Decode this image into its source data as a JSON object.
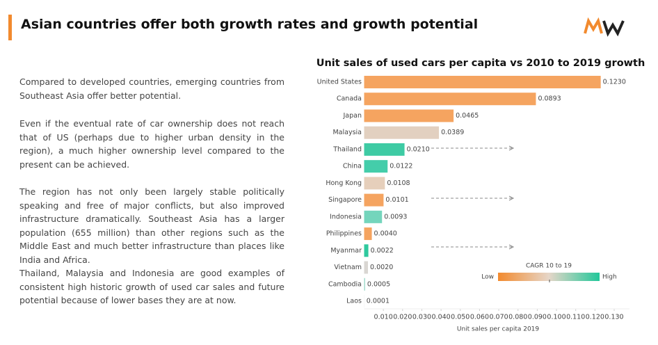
{
  "header": {
    "title": "Asian countries offer both growth rates and growth potential"
  },
  "paragraphs": [
    "Compared to developed countries, emerging countries from Southeast Asia offer better potential.",
    "Even if the eventual rate of car ownership does not reach that of US (perhaps due to higher urban density in the region), a much higher ownership level compared to the present can be achieved.",
    "The region has not only been largely stable politically speaking and free of major conflicts, but also improved infrastructure dramatically. Southeast Asia has a larger population (655 million) than other regions such as the Middle East and much better infrastructure than places like India and Africa.",
    "Thailand, Malaysia and Indonesia are good examples of consistent high historic growth of used car sales and future potential because of lower bases they are at now."
  ],
  "chart_data": {
    "type": "bar",
    "orientation": "horizontal",
    "title": "Unit sales of used cars per capita vs 2010 to 2019 growth",
    "x_label": "Unit sales per capita 2019",
    "categories": [
      "United States",
      "Canada",
      "Japan",
      "Malaysia",
      "Thailand",
      "China",
      "Hong Kong",
      "Singapore",
      "Indonesia",
      "Philippines",
      "Myanmar",
      "Vietnam",
      "Cambodia",
      "Laos"
    ],
    "values": [
      0.123,
      0.0893,
      0.0465,
      0.0389,
      0.021,
      0.0122,
      0.0108,
      0.0101,
      0.0093,
      0.004,
      0.0022,
      0.002,
      0.0005,
      0.0001
    ],
    "value_labels": [
      "0.1230",
      "0.0893",
      "0.0465",
      "0.0389",
      "0.0210",
      "0.0122",
      "0.0108",
      "0.0101",
      "0.0093",
      "0.0040",
      "0.0022",
      "0.0020",
      "0.0005",
      "0.0001"
    ],
    "colors": [
      "#f5a460",
      "#f5a460",
      "#f5a460",
      "#e2d0c0",
      "#3ecba4",
      "#44cdaa",
      "#e6cfbb",
      "#f5a460",
      "#74d5bc",
      "#f5a460",
      "#2fc99e",
      "#d9d6d2",
      "#9bd8c8",
      "#e8e8e8"
    ],
    "xlim": [
      0,
      0.13
    ],
    "xticks": [
      {
        "value": 0.01,
        "label": "0.010"
      },
      {
        "value": 0.02,
        "label": "0.020"
      },
      {
        "value": 0.03,
        "label": "0.030"
      },
      {
        "value": 0.04,
        "label": "0.040"
      },
      {
        "value": 0.05,
        "label": "0.050"
      },
      {
        "value": 0.06,
        "label": "0.060"
      },
      {
        "value": 0.07,
        "label": "0.070"
      },
      {
        "value": 0.08,
        "label": "0.080"
      },
      {
        "value": 0.09,
        "label": "0.090"
      },
      {
        "value": 0.1,
        "label": "0.100"
      },
      {
        "value": 0.11,
        "label": "0.110"
      },
      {
        "value": 0.12,
        "label": "0.120"
      },
      {
        "value": 0.13,
        "label": "0.130"
      }
    ],
    "legend": {
      "title": "CAGR 10 to 19",
      "low": "Low",
      "high": "High"
    }
  }
}
